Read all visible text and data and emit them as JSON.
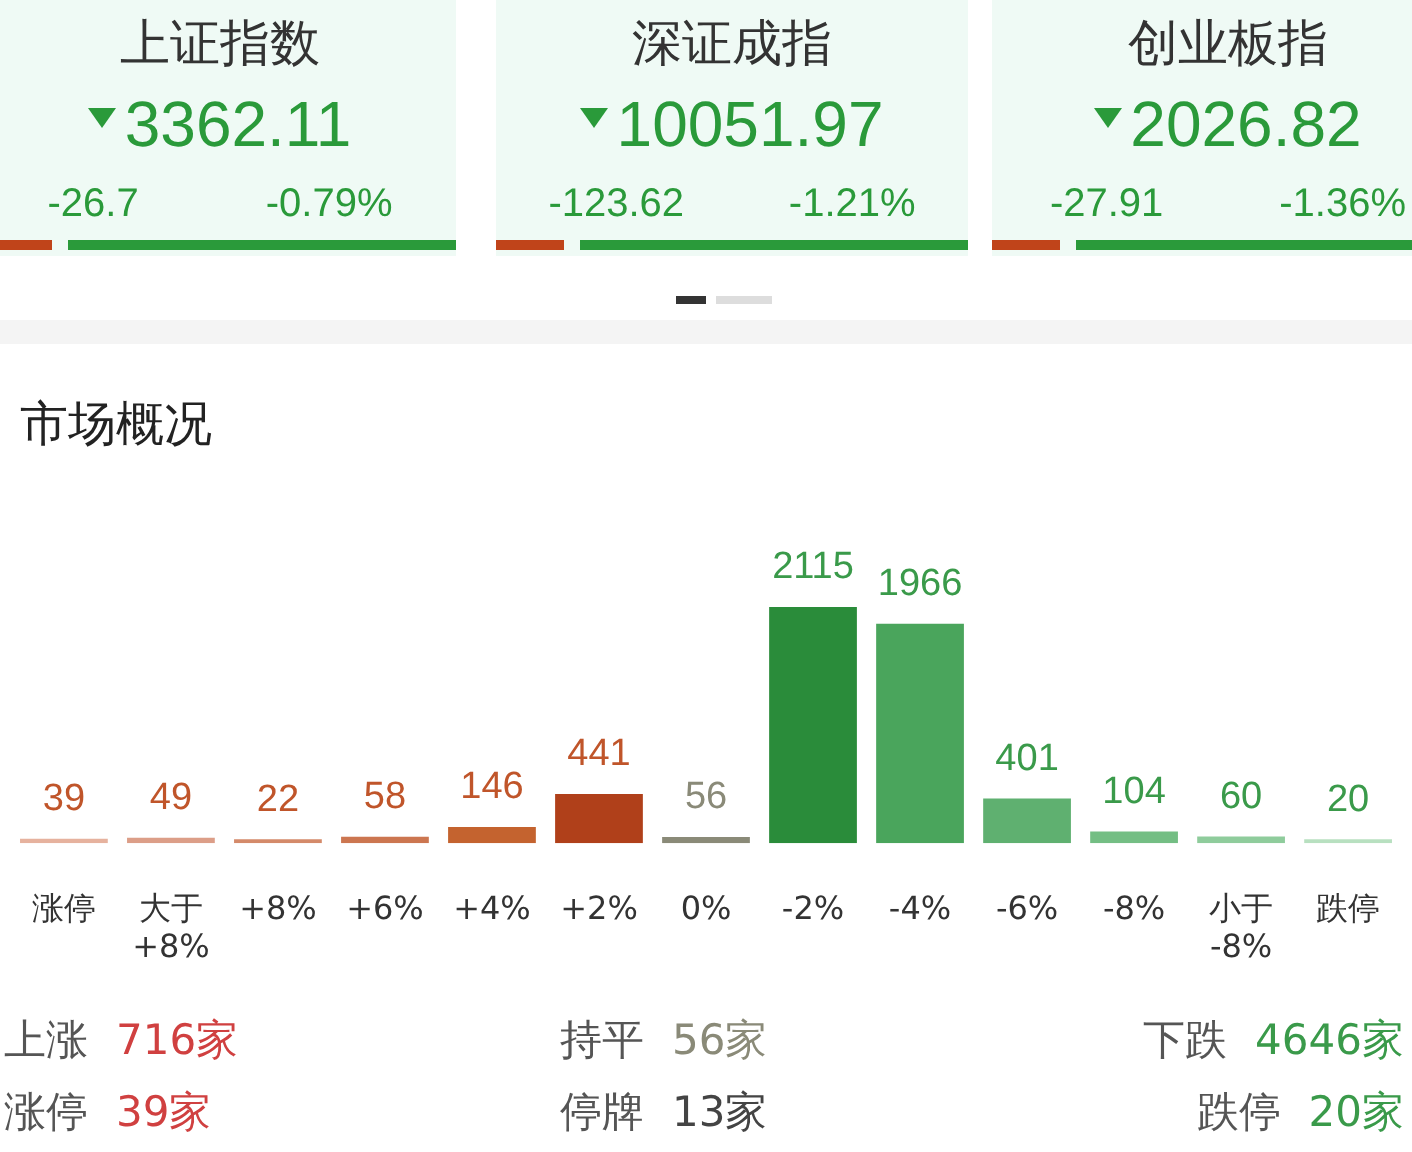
{
  "chart_data": [
    {
      "type": "other",
      "title": "上证指数",
      "annotations": [
        "3362.11",
        "-26.7",
        "-0.79%"
      ]
    },
    {
      "type": "other",
      "title": "深证成指",
      "annotations": [
        "10051.97",
        "-123.62",
        "-1.21%"
      ]
    },
    {
      "type": "other",
      "title": "创业板指",
      "annotations": [
        "2026.82",
        "-27.91",
        "-1.36%"
      ]
    },
    {
      "type": "bar",
      "title": "市场概况",
      "categories": [
        "涨停",
        "大于\n+8%",
        "+8%",
        "+6%",
        "+4%",
        "+2%",
        "0%",
        "-2%",
        "-4%",
        "-6%",
        "-8%",
        "小于\n-8%",
        "跌停"
      ],
      "values": [
        39,
        49,
        22,
        58,
        146,
        441,
        56,
        2115,
        1966,
        401,
        104,
        60,
        20
      ],
      "colors": [
        "#e6b29e",
        "#dc9e88",
        "#d48a6a",
        "#cc7650",
        "#c4632f",
        "#b0401a",
        "#8a8a78",
        "#2a8c3a",
        "#4aa55c",
        "#5fb070",
        "#74be84",
        "#8fcc9c",
        "#b8e0c0"
      ],
      "data_labels": true,
      "annotations": [
        "上涨 716家",
        "持平 56家",
        "下跌 4646家",
        "涨停 39家",
        "停牌 13家",
        "跌停 20家"
      ]
    }
  ]
}
